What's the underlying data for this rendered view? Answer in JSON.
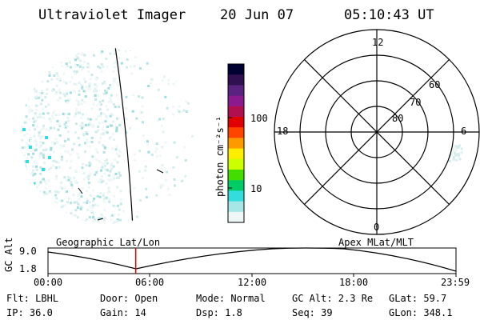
{
  "header": {
    "title": "Ultraviolet Imager",
    "date": "20 Jun 07",
    "time": "05:10:43 UT"
  },
  "colorbar": {
    "unit_label": "photon cm⁻²s⁻¹",
    "tick_labels": [
      "100",
      "10"
    ],
    "colors": [
      "#000033",
      "#301050",
      "#5a2380",
      "#8b1a8e",
      "#b00f50",
      "#e00000",
      "#ff4400",
      "#ff9900",
      "#ffee00",
      "#ccff00",
      "#44dd00",
      "#00cc66",
      "#33dddd",
      "#a6e6e6",
      "#eef6f6"
    ]
  },
  "polar_plot": {
    "mlt_labels": {
      "top": "12",
      "left": "18",
      "right": "6",
      "bottom": "0"
    },
    "lat_labels": [
      "60",
      "70",
      "80"
    ]
  },
  "timeline": {
    "left_caption": "Geographic Lat/Lon",
    "right_caption": "Apex MLat/MLT",
    "axis_label": "GC Alt",
    "y_ticks": [
      "9.0",
      "1.8"
    ],
    "x_ticks": [
      "00:00",
      "06:00",
      "12:00",
      "18:00",
      "23:59"
    ],
    "current_time_fraction": 0.215
  },
  "info": {
    "row1": {
      "flt": "Flt: LBHL",
      "door": "Door: Open",
      "mode": "Mode: Normal",
      "gcalt": "GC Alt: 2.3 Re",
      "glat": "GLat:  59.7"
    },
    "row2": {
      "ip": "IP: 36.0",
      "gain": "Gain: 14",
      "dsp": "Dsp:    1.8",
      "seq": "Seq: 39",
      "glon": "GLon: 348.1"
    }
  }
}
